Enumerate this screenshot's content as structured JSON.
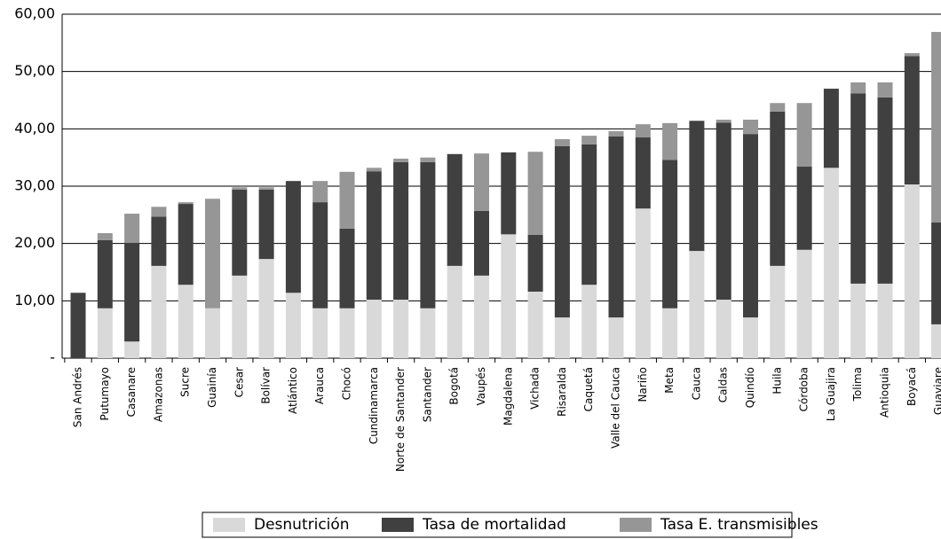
{
  "chart_data": {
    "type": "stacked_bar",
    "categories": [
      "San Andrés",
      "Putumayo",
      "Casanare",
      "Amazonas",
      "Sucre",
      "Guainía",
      "Cesar",
      "Bolívar",
      "Atlántico",
      "Arauca",
      "Chocó",
      "Cundinamarca",
      "Norte de Santander",
      "Santander",
      "Bogotá",
      "Vaupés",
      "Magdalena",
      "Vichada",
      "Risaralda",
      "Caquetá",
      "Valle del Cauca",
      "Nariño",
      "Meta",
      "Cauca",
      "Caldas",
      "Quindío",
      "Huila",
      "Córdoba",
      "La Guajira",
      "Tolima",
      "Antioquia",
      "Boyacá",
      "Guaviare"
    ],
    "series": [
      {
        "name": "Desnutrición",
        "color": "#d9d9d9",
        "values": [
          0,
          8.7,
          2.9,
          16.1,
          12.8,
          8.7,
          14.4,
          17.3,
          11.4,
          8.7,
          8.7,
          10.2,
          10.2,
          8.7,
          16.1,
          14.4,
          21.6,
          11.6,
          7.1,
          12.8,
          7.1,
          26.1,
          8.7,
          18.7,
          10.2,
          7.1,
          16.1,
          18.9,
          33.2,
          13,
          13,
          30.3,
          5.9
        ]
      },
      {
        "name": "Tasa de mortalidad",
        "color": "#404040",
        "values": [
          11.4,
          11.9,
          17.2,
          8.6,
          14.1,
          0,
          15,
          12.1,
          19.5,
          18.5,
          13.9,
          22.4,
          24,
          25.5,
          19.5,
          11.3,
          14.3,
          9.9,
          29.9,
          24.5,
          31.6,
          12.4,
          25.9,
          22.7,
          30.9,
          32,
          26.9,
          14.5,
          13.8,
          33.2,
          32.5,
          22.4,
          17.8
        ]
      },
      {
        "name": "Tasa E. transmisibles",
        "color": "#969696",
        "values": [
          0,
          1.2,
          5.1,
          1.7,
          0.3,
          19.1,
          0.4,
          0.4,
          0,
          3.7,
          9.9,
          0.6,
          0.6,
          0.8,
          0,
          10,
          0,
          14.5,
          1.2,
          1.5,
          0.9,
          2.3,
          6.4,
          0,
          0.5,
          2.5,
          1.5,
          11.1,
          0,
          1.9,
          2.6,
          0.5,
          33.2
        ]
      }
    ],
    "ylim": [
      0,
      60
    ],
    "yticks": [
      {
        "value": 0,
        "label": "-"
      },
      {
        "value": 10,
        "label": "10,00"
      },
      {
        "value": 20,
        "label": "20,00"
      },
      {
        "value": 30,
        "label": "30,00"
      },
      {
        "value": 40,
        "label": "40,00"
      },
      {
        "value": 50,
        "label": "50,00"
      },
      {
        "value": 60,
        "label": "60,00"
      }
    ],
    "grid": true,
    "legend": "bottom"
  }
}
